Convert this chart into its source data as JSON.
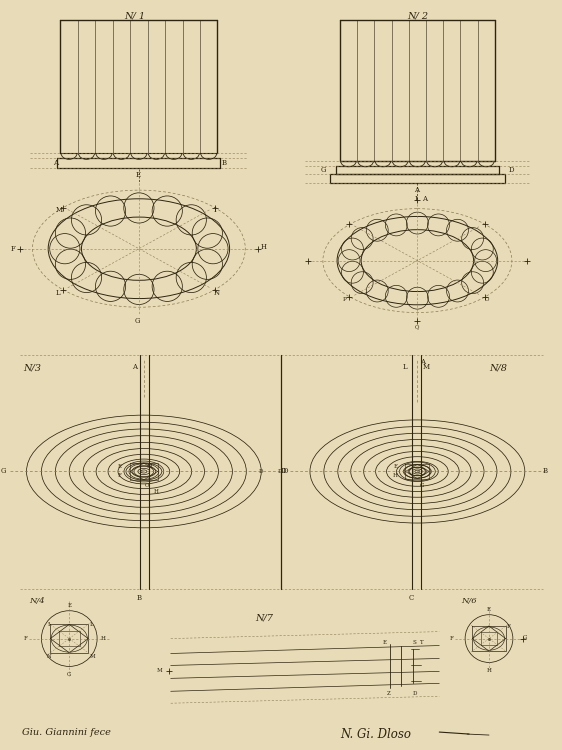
{
  "bg_color": "#e8dbb8",
  "line_color": "#2e2510",
  "dash_color": "#8a7a50",
  "fig_label1": "N/ 1",
  "fig_label2": "N/ 2",
  "fig_label3": "N/3",
  "fig_label4": "N/4",
  "fig_label6": "N/6",
  "fig_label7": "N/7",
  "fig_label8": "N/8",
  "signature_left": "Giu. Giannini fece",
  "signature_right": "N. Gi. Dloso"
}
